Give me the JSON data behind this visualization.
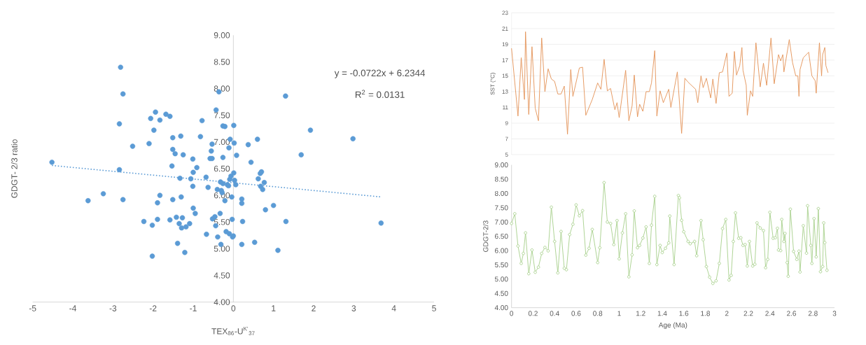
{
  "chart_data": [
    {
      "type": "scatter",
      "xlabel": "TEX$_{86}$-U$^{K'}$$_{37}$",
      "ylabel": "GDGT- 2/3 ratio",
      "annotations": [
        "y = -0.0722x + 6.2344",
        "R$^{2}$ = 0.0131"
      ],
      "xlim": [
        -5,
        5
      ],
      "ylim": [
        4,
        9
      ],
      "xticks": [
        -5,
        -4,
        -3,
        -2,
        -1,
        0,
        1,
        2,
        3,
        4,
        5
      ],
      "yticks": [
        {
          "value": 4,
          "label": "4.00"
        },
        {
          "value": 4.5,
          "label": "4.50"
        },
        {
          "value": 5,
          "label": "5.00"
        },
        {
          "value": 5.5,
          "label": "5.50"
        },
        {
          "value": 6,
          "label": "6.00"
        },
        {
          "value": 6.5,
          "label": "6.50"
        },
        {
          "value": 7,
          "label": "7.00"
        },
        {
          "value": 7.5,
          "label": "7.50"
        },
        {
          "value": 8,
          "label": "8.00"
        },
        {
          "value": 8.5,
          "label": "8.50"
        },
        {
          "value": 9,
          "label": "9.00"
        }
      ],
      "series": [
        {
          "type": "scatter",
          "color": "#5b9bd5",
          "marker": "circle",
          "x": [
            -4.52,
            -3.62,
            -3.24,
            -2.81,
            -2.75,
            -2.84,
            -2.84,
            -2.75,
            -2.51,
            -2.23,
            -2.1,
            -2.06,
            -2.02,
            -2.02,
            -1.98,
            -1.94,
            -1.89,
            -1.89,
            -1.83,
            -1.83,
            -1.68,
            -1.58,
            -1.58,
            -1.53,
            -1.51,
            -1.51,
            -1.51,
            -1.45,
            -1.42,
            -1.39,
            -1.35,
            -1.33,
            -1.29,
            -1.3,
            -1.31,
            -1.27,
            -1.25,
            -1.21,
            -1.18,
            -1.09,
            -1.06,
            -1.01,
            -1.0,
            -1.01,
            -1.0,
            -0.95,
            -0.91,
            -0.82,
            -0.78,
            -0.68,
            -0.67,
            -0.63,
            -0.58,
            -0.55,
            -0.53,
            -0.53,
            -0.52,
            -0.46,
            -0.44,
            -0.43,
            -0.4,
            -0.39,
            -0.36,
            -0.33,
            -0.32,
            -0.31,
            -0.3,
            -0.28,
            -0.26,
            -0.26,
            -0.26,
            -0.21,
            -0.21,
            -0.18,
            -0.15,
            -0.12,
            -0.11,
            -0.1,
            -0.09,
            -0.08,
            -0.06,
            -0.04,
            -0.03,
            -0.02,
            0.0,
            0.01,
            0.01,
            0.02,
            0.03,
            0.06,
            0.08,
            0.21,
            0.21,
            0.21,
            0.23,
            0.37,
            0.44,
            0.53,
            0.6,
            0.62,
            0.67,
            0.68,
            0.7,
            0.73,
            0.77,
            0.8,
            1.0,
            1.11,
            1.3,
            1.31,
            1.69,
            1.92,
            2.98,
            3.68
          ],
          "values": [
            6.62,
            5.9,
            6.03,
            8.4,
            7.9,
            7.34,
            6.48,
            5.92,
            6.92,
            5.51,
            6.97,
            7.44,
            5.44,
            4.86,
            7.22,
            7.56,
            5.86,
            5.55,
            6.0,
            7.41,
            7.52,
            7.48,
            5.54,
            6.55,
            6.86,
            7.08,
            5.92,
            6.78,
            5.59,
            5.1,
            5.47,
            6.32,
            5.39,
            5.97,
            7.11,
            5.58,
            6.76,
            4.93,
            5.41,
            5.47,
            6.31,
            6.68,
            6.43,
            6.17,
            5.76,
            5.66,
            6.52,
            7.1,
            7.4,
            6.34,
            5.27,
            6.15,
            6.69,
            6.83,
            6.69,
            6.96,
            5.56,
            5.6,
            5.43,
            7.6,
            6.11,
            5.22,
            7.94,
            5.66,
            6.25,
            5.08,
            6.09,
            6.05,
            6.71,
            6.22,
            7.3,
            7.29,
            5.9,
            5.32,
            6.2,
            6.18,
            6.89,
            5.28,
            6.3,
            7.05,
            6.36,
            5.97,
            5.55,
            5.22,
            5.24,
            7.31,
            6.42,
            6.98,
            6.28,
            6.2,
            6.75,
            5.93,
            5.85,
            5.08,
            5.51,
            6.95,
            6.62,
            5.12,
            7.05,
            6.31,
            6.41,
            6.17,
            6.44,
            6.11,
            6.24,
            5.73,
            5.81,
            4.97,
            7.86,
            5.51,
            6.76,
            7.22,
            7.06,
            5.48
          ]
        },
        {
          "type": "line",
          "color": "#5b9bd5",
          "line_style": "dotted",
          "x": [
            -4.52,
            3.68
          ],
          "values": [
            6.56,
            5.97
          ]
        }
      ]
    },
    {
      "type": "line",
      "ylabel": "SST (°C)",
      "xlim": [
        0,
        3
      ],
      "ylim": [
        5,
        23
      ],
      "yticks": [
        5,
        7,
        9,
        11,
        13,
        15,
        17,
        19,
        21,
        23
      ],
      "grid": "y",
      "tick_labels": "y",
      "series": [
        {
          "color": "#e4955a",
          "x": [
            0.0,
            0.06,
            0.09,
            0.12,
            0.13,
            0.16,
            0.19,
            0.22,
            0.25,
            0.28,
            0.31,
            0.34,
            0.37,
            0.4,
            0.43,
            0.46,
            0.49,
            0.52,
            0.55,
            0.57,
            0.63,
            0.66,
            0.69,
            0.75,
            0.8,
            0.83,
            0.86,
            0.89,
            0.92,
            0.96,
            0.98,
            1.0,
            1.06,
            1.09,
            1.12,
            1.14,
            1.17,
            1.19,
            1.22,
            1.25,
            1.28,
            1.3,
            1.33,
            1.35,
            1.38,
            1.41,
            1.46,
            1.48,
            1.54,
            1.58,
            1.61,
            1.64,
            1.71,
            1.73,
            1.76,
            1.78,
            1.81,
            1.85,
            1.87,
            1.9,
            1.93,
            1.96,
            2.0,
            2.02,
            2.05,
            2.07,
            2.09,
            2.12,
            2.14,
            2.15,
            2.18,
            2.19,
            2.22,
            2.24,
            2.27,
            2.31,
            2.34,
            2.37,
            2.41,
            2.44,
            2.48,
            2.5,
            2.52,
            2.53,
            2.58,
            2.61,
            2.64,
            2.66,
            2.67,
            2.68,
            2.71,
            2.76,
            2.79,
            2.82,
            2.83,
            2.86,
            2.88,
            2.89,
            2.91,
            2.92,
            2.94
          ],
          "values": [
            18.5,
            9.9,
            17.3,
            12.0,
            20.6,
            10.1,
            18.7,
            10.9,
            9.3,
            19.8,
            13.0,
            15.9,
            14.6,
            14.3,
            12.7,
            12.7,
            13.7,
            7.6,
            15.8,
            12.4,
            16.0,
            16.1,
            10.0,
            12.0,
            14.1,
            13.3,
            17.1,
            13.1,
            13.4,
            10.7,
            11.6,
            9.7,
            15.7,
            9.3,
            11.2,
            15.1,
            9.8,
            11.4,
            10.5,
            13.0,
            13.0,
            14.1,
            18.2,
            9.9,
            13.1,
            11.6,
            13.3,
            11.0,
            15.5,
            7.7,
            14.7,
            14.2,
            13.3,
            11.6,
            15.0,
            13.5,
            14.7,
            12.2,
            14.6,
            11.5,
            15.4,
            15.5,
            17.9,
            12.4,
            12.8,
            18.1,
            15.1,
            16.3,
            18.6,
            15.7,
            13.8,
            10.0,
            13.1,
            12.4,
            19.2,
            13.6,
            16.6,
            13.8,
            19.8,
            14.0,
            17.7,
            16.9,
            17.7,
            15.5,
            19.6,
            16.7,
            15.0,
            15.0,
            12.4,
            15.8,
            17.3,
            18.0,
            15.0,
            14.4,
            12.8,
            19.2,
            15.0,
            17.7,
            18.6,
            16.3,
            15.4
          ]
        }
      ]
    },
    {
      "type": "line",
      "xlabel": "Age (Ma)",
      "ylabel": "GDGT-2/3",
      "xlim": [
        0,
        3
      ],
      "ylim": [
        4,
        9
      ],
      "xticks": [
        0,
        0.2,
        0.4,
        0.6,
        0.8,
        1,
        1.2,
        1.4,
        1.6,
        1.8,
        2,
        2.2,
        2.4,
        2.6,
        2.8,
        3
      ],
      "yticks": [
        {
          "value": 4,
          "label": "4.00"
        },
        {
          "value": 4.5,
          "label": "4.50"
        },
        {
          "value": 5,
          "label": "5.00"
        },
        {
          "value": 5.5,
          "label": "5.50"
        },
        {
          "value": 6,
          "label": "6.00"
        },
        {
          "value": 6.5,
          "label": "6.50"
        },
        {
          "value": 7,
          "label": "7.00"
        },
        {
          "value": 7.5,
          "label": "7.50"
        },
        {
          "value": 8,
          "label": "8.00"
        },
        {
          "value": 8.5,
          "label": "8.50"
        },
        {
          "value": 9,
          "label": "9.00"
        }
      ],
      "series": [
        {
          "color": "#a9d18e",
          "marker": "circle",
          "x": [
            0.0,
            0.03,
            0.06,
            0.09,
            0.11,
            0.13,
            0.16,
            0.19,
            0.22,
            0.25,
            0.28,
            0.31,
            0.34,
            0.37,
            0.4,
            0.43,
            0.46,
            0.49,
            0.51,
            0.54,
            0.57,
            0.6,
            0.63,
            0.66,
            0.69,
            0.72,
            0.75,
            0.8,
            0.82,
            0.86,
            0.89,
            0.92,
            0.95,
            0.98,
            1.0,
            1.03,
            1.06,
            1.09,
            1.12,
            1.14,
            1.17,
            1.19,
            1.22,
            1.25,
            1.28,
            1.3,
            1.33,
            1.35,
            1.38,
            1.4,
            1.43,
            1.46,
            1.47,
            1.51,
            1.55,
            1.56,
            1.58,
            1.6,
            1.64,
            1.66,
            1.7,
            1.72,
            1.76,
            1.78,
            1.81,
            1.84,
            1.87,
            1.9,
            1.93,
            1.96,
            1.99,
            2.02,
            2.04,
            2.06,
            2.08,
            2.11,
            2.13,
            2.15,
            2.17,
            2.19,
            2.21,
            2.24,
            2.26,
            2.28,
            2.31,
            2.34,
            2.36,
            2.38,
            2.4,
            2.43,
            2.45,
            2.47,
            2.48,
            2.5,
            2.51,
            2.53,
            2.54,
            2.56,
            2.57,
            2.59,
            2.62,
            2.65,
            2.67,
            2.68,
            2.71,
            2.74,
            2.75,
            2.78,
            2.79,
            2.81,
            2.83,
            2.85,
            2.87,
            2.89,
            2.9,
            2.91,
            2.93
          ],
          "values": [
            6.95,
            7.29,
            6.16,
            5.55,
            5.9,
            6.62,
            5.19,
            6.02,
            5.24,
            5.42,
            5.9,
            6.11,
            5.99,
            7.52,
            6.32,
            5.22,
            6.67,
            5.38,
            5.33,
            6.56,
            6.92,
            7.6,
            7.22,
            7.4,
            5.84,
            6.08,
            6.74,
            5.58,
            6.1,
            8.38,
            7.0,
            6.95,
            6.21,
            7.05,
            5.71,
            6.62,
            7.29,
            5.08,
            5.85,
            7.39,
            6.1,
            6.18,
            6.44,
            6.83,
            5.55,
            6.89,
            7.9,
            5.51,
            6.18,
            5.93,
            6.08,
            6.27,
            7.21,
            5.51,
            7.93,
            7.85,
            7.06,
            6.66,
            6.32,
            6.24,
            6.32,
            5.82,
            7.05,
            6.38,
            5.44,
            5.07,
            4.85,
            4.94,
            5.55,
            6.77,
            7.09,
            4.97,
            5.13,
            6.32,
            7.32,
            6.43,
            6.45,
            6.18,
            6.21,
            5.46,
            6.32,
            5.46,
            5.52,
            6.97,
            6.79,
            6.7,
            5.4,
            5.69,
            7.34,
            6.43,
            6.45,
            6.78,
            6.02,
            6.0,
            7.09,
            6.32,
            6.6,
            5.58,
            5.1,
            7.45,
            5.97,
            5.69,
            5.98,
            5.25,
            6.87,
            5.91,
            7.57,
            6.18,
            5.55,
            7.12,
            5.78,
            7.47,
            5.26,
            5.44,
            6.97,
            6.28,
            5.31
          ]
        }
      ]
    }
  ]
}
